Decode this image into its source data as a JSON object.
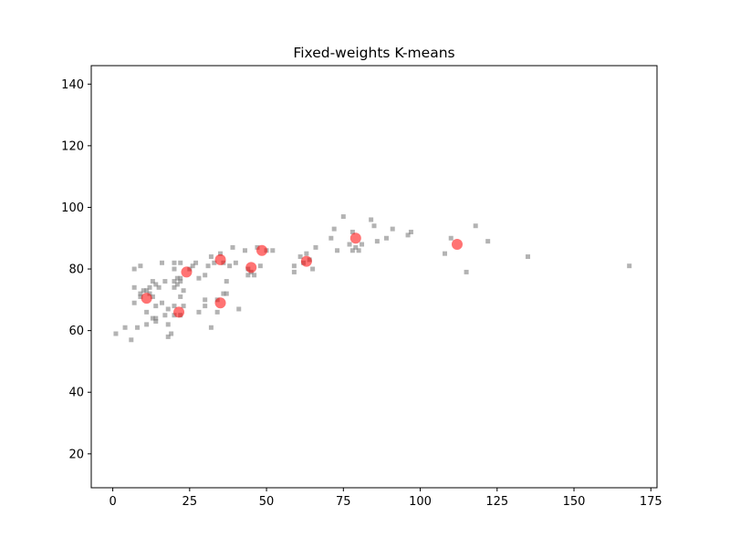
{
  "chart_data": {
    "type": "scatter",
    "title": "Fixed-weights K-means",
    "xlabel": "",
    "ylabel": "",
    "xlim": [
      -7,
      177
    ],
    "ylim": [
      9,
      146
    ],
    "xticks": [
      0,
      25,
      50,
      75,
      100,
      125,
      150,
      175
    ],
    "yticks": [
      20,
      40,
      60,
      80,
      100,
      120,
      140
    ],
    "grid": false,
    "colors": {
      "points": "#808080",
      "centroids": "#ff0000"
    },
    "series": [
      {
        "marker": "square",
        "points": [
          [
            1,
            59
          ],
          [
            4,
            61
          ],
          [
            6,
            57
          ],
          [
            7,
            80
          ],
          [
            7,
            74
          ],
          [
            7,
            69
          ],
          [
            8,
            61
          ],
          [
            9,
            81
          ],
          [
            9,
            72
          ],
          [
            9,
            71
          ],
          [
            10,
            73
          ],
          [
            11,
            73
          ],
          [
            11,
            66
          ],
          [
            11,
            62
          ],
          [
            12,
            72
          ],
          [
            12,
            74
          ],
          [
            13,
            76
          ],
          [
            13,
            71
          ],
          [
            13,
            64
          ],
          [
            14,
            75
          ],
          [
            14,
            68
          ],
          [
            14,
            64
          ],
          [
            14,
            63
          ],
          [
            15,
            74
          ],
          [
            16,
            82
          ],
          [
            16,
            69
          ],
          [
            17,
            76
          ],
          [
            17,
            65
          ],
          [
            18,
            67
          ],
          [
            18,
            62
          ],
          [
            18,
            58
          ],
          [
            19,
            59
          ],
          [
            20,
            82
          ],
          [
            20,
            80
          ],
          [
            20,
            76
          ],
          [
            20,
            74
          ],
          [
            20,
            68
          ],
          [
            20,
            65
          ],
          [
            21,
            77
          ],
          [
            21,
            75
          ],
          [
            22,
            82
          ],
          [
            22,
            77
          ],
          [
            22,
            76
          ],
          [
            22,
            71
          ],
          [
            22,
            65
          ],
          [
            23,
            73
          ],
          [
            23,
            68
          ],
          [
            25,
            80
          ],
          [
            26,
            81
          ],
          [
            27,
            82
          ],
          [
            28,
            77
          ],
          [
            28,
            66
          ],
          [
            30,
            78
          ],
          [
            30,
            70
          ],
          [
            30,
            68
          ],
          [
            31,
            81
          ],
          [
            32,
            84
          ],
          [
            32,
            61
          ],
          [
            33,
            82
          ],
          [
            34,
            70
          ],
          [
            34,
            66
          ],
          [
            35,
            85
          ],
          [
            36,
            82
          ],
          [
            36,
            72
          ],
          [
            37,
            76
          ],
          [
            37,
            72
          ],
          [
            38,
            81
          ],
          [
            39,
            87
          ],
          [
            40,
            82
          ],
          [
            41,
            67
          ],
          [
            43,
            86
          ],
          [
            44,
            78
          ],
          [
            44,
            80
          ],
          [
            45,
            79
          ],
          [
            46,
            78
          ],
          [
            47,
            87
          ],
          [
            48,
            81
          ],
          [
            50,
            86
          ],
          [
            52,
            86
          ],
          [
            59,
            81
          ],
          [
            59,
            79
          ],
          [
            61,
            84
          ],
          [
            62,
            82
          ],
          [
            63,
            85
          ],
          [
            64,
            83
          ],
          [
            65,
            80
          ],
          [
            66,
            87
          ],
          [
            71,
            90
          ],
          [
            72,
            93
          ],
          [
            73,
            86
          ],
          [
            75,
            97
          ],
          [
            77,
            88
          ],
          [
            78,
            86
          ],
          [
            78,
            92
          ],
          [
            79,
            87
          ],
          [
            80,
            86
          ],
          [
            81,
            88
          ],
          [
            84,
            96
          ],
          [
            85,
            94
          ],
          [
            86,
            89
          ],
          [
            89,
            90
          ],
          [
            91,
            93
          ],
          [
            96,
            91
          ],
          [
            97,
            92
          ],
          [
            108,
            85
          ],
          [
            110,
            90
          ],
          [
            115,
            79
          ],
          [
            118,
            94
          ],
          [
            122,
            89
          ],
          [
            135,
            84
          ],
          [
            168,
            81
          ]
        ]
      },
      {
        "marker": "circle",
        "points": [
          [
            11,
            70.5
          ],
          [
            21.5,
            66
          ],
          [
            24,
            79
          ],
          [
            35,
            83
          ],
          [
            35,
            69
          ],
          [
            45,
            80.5
          ],
          [
            48.5,
            86
          ],
          [
            63,
            82.5
          ],
          [
            79,
            90
          ],
          [
            112,
            88
          ]
        ]
      }
    ]
  }
}
